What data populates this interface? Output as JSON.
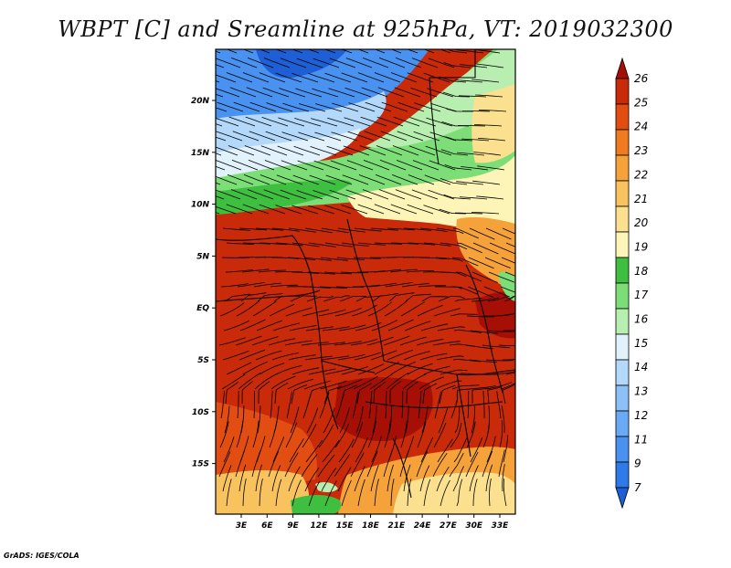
{
  "title": "WBPT [C] and Sreamline at 925hPa, VT: 2019032300",
  "footer": "GrADS: IGES/COLA",
  "map": {
    "lat_ticks": [
      "20N",
      "15N",
      "10N",
      "5N",
      "EQ",
      "5S",
      "10S",
      "15S"
    ],
    "lon_ticks": [
      "3E",
      "6E",
      "9E",
      "12E",
      "15E",
      "18E",
      "21E",
      "24E",
      "27E",
      "30E",
      "33E"
    ]
  },
  "colorbar": {
    "labels": [
      "7",
      "9",
      "11",
      "12",
      "13",
      "14",
      "15",
      "16",
      "17",
      "18",
      "19",
      "20",
      "21",
      "22",
      "23",
      "24",
      "25",
      "26"
    ],
    "colors": [
      "#1f5fd6",
      "#2f7ae8",
      "#4a92f0",
      "#6aa9f4",
      "#8cc0f6",
      "#b4d8fa",
      "#e2f2fc",
      "#b8eeb0",
      "#7dde78",
      "#3fbf3f",
      "#fdf5b8",
      "#fbe18f",
      "#f8c35e",
      "#f5a23a",
      "#ef7a1f",
      "#e24d12",
      "#c82a0a",
      "#a50f05"
    ]
  },
  "palette": {
    "blue_dark": "#1f5fd6",
    "blue": "#4a92f0",
    "blue_light": "#b4d8fa",
    "green_light": "#b8eeb0",
    "green": "#3fbf3f",
    "yellow": "#fdf5b8",
    "orange": "#f5a23a",
    "red": "#c82a0a",
    "red_dark": "#a50f05"
  }
}
